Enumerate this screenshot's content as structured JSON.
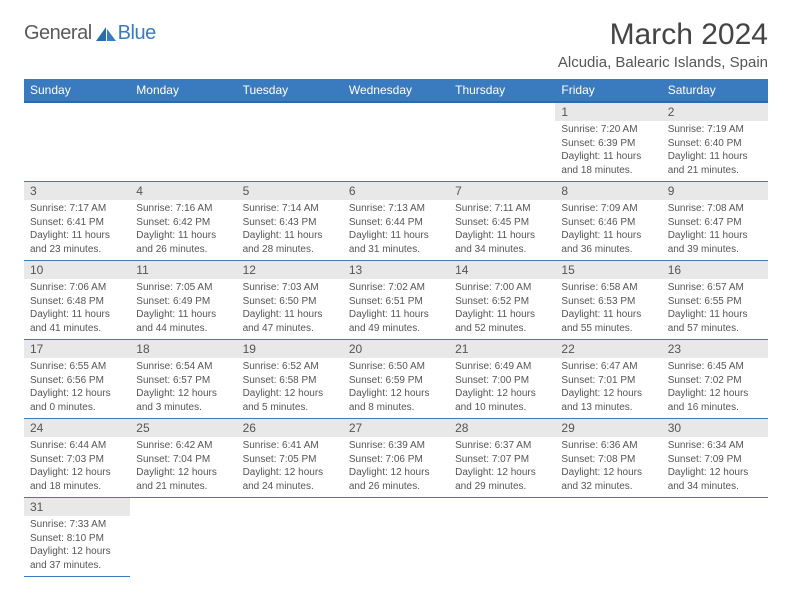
{
  "logo": {
    "text1": "General",
    "text2": "Blue"
  },
  "title": "March 2024",
  "location": "Alcudia, Balearic Islands, Spain",
  "colors": {
    "header_bg": "#3a7bbf",
    "header_border": "#2a6bad",
    "daynum_bg": "#e8e8e8",
    "cell_border": "#3a7bbf",
    "text": "#555555",
    "title_color": "#444444",
    "logo_gray": "#5a5a5a",
    "logo_blue": "#3a7bbf",
    "background": "#ffffff"
  },
  "typography": {
    "title_fontsize": 30,
    "location_fontsize": 15,
    "header_fontsize": 12,
    "daynum_fontsize": 12,
    "body_fontsize": 10,
    "logo_fontsize": 20
  },
  "columns": [
    "Sunday",
    "Monday",
    "Tuesday",
    "Wednesday",
    "Thursday",
    "Friday",
    "Saturday"
  ],
  "weeks": [
    [
      null,
      null,
      null,
      null,
      null,
      {
        "n": "1",
        "sunrise": "Sunrise: 7:20 AM",
        "sunset": "Sunset: 6:39 PM",
        "daylight": "Daylight: 11 hours and 18 minutes."
      },
      {
        "n": "2",
        "sunrise": "Sunrise: 7:19 AM",
        "sunset": "Sunset: 6:40 PM",
        "daylight": "Daylight: 11 hours and 21 minutes."
      }
    ],
    [
      {
        "n": "3",
        "sunrise": "Sunrise: 7:17 AM",
        "sunset": "Sunset: 6:41 PM",
        "daylight": "Daylight: 11 hours and 23 minutes."
      },
      {
        "n": "4",
        "sunrise": "Sunrise: 7:16 AM",
        "sunset": "Sunset: 6:42 PM",
        "daylight": "Daylight: 11 hours and 26 minutes."
      },
      {
        "n": "5",
        "sunrise": "Sunrise: 7:14 AM",
        "sunset": "Sunset: 6:43 PM",
        "daylight": "Daylight: 11 hours and 28 minutes."
      },
      {
        "n": "6",
        "sunrise": "Sunrise: 7:13 AM",
        "sunset": "Sunset: 6:44 PM",
        "daylight": "Daylight: 11 hours and 31 minutes."
      },
      {
        "n": "7",
        "sunrise": "Sunrise: 7:11 AM",
        "sunset": "Sunset: 6:45 PM",
        "daylight": "Daylight: 11 hours and 34 minutes."
      },
      {
        "n": "8",
        "sunrise": "Sunrise: 7:09 AM",
        "sunset": "Sunset: 6:46 PM",
        "daylight": "Daylight: 11 hours and 36 minutes."
      },
      {
        "n": "9",
        "sunrise": "Sunrise: 7:08 AM",
        "sunset": "Sunset: 6:47 PM",
        "daylight": "Daylight: 11 hours and 39 minutes."
      }
    ],
    [
      {
        "n": "10",
        "sunrise": "Sunrise: 7:06 AM",
        "sunset": "Sunset: 6:48 PM",
        "daylight": "Daylight: 11 hours and 41 minutes."
      },
      {
        "n": "11",
        "sunrise": "Sunrise: 7:05 AM",
        "sunset": "Sunset: 6:49 PM",
        "daylight": "Daylight: 11 hours and 44 minutes."
      },
      {
        "n": "12",
        "sunrise": "Sunrise: 7:03 AM",
        "sunset": "Sunset: 6:50 PM",
        "daylight": "Daylight: 11 hours and 47 minutes."
      },
      {
        "n": "13",
        "sunrise": "Sunrise: 7:02 AM",
        "sunset": "Sunset: 6:51 PM",
        "daylight": "Daylight: 11 hours and 49 minutes."
      },
      {
        "n": "14",
        "sunrise": "Sunrise: 7:00 AM",
        "sunset": "Sunset: 6:52 PM",
        "daylight": "Daylight: 11 hours and 52 minutes."
      },
      {
        "n": "15",
        "sunrise": "Sunrise: 6:58 AM",
        "sunset": "Sunset: 6:53 PM",
        "daylight": "Daylight: 11 hours and 55 minutes."
      },
      {
        "n": "16",
        "sunrise": "Sunrise: 6:57 AM",
        "sunset": "Sunset: 6:55 PM",
        "daylight": "Daylight: 11 hours and 57 minutes."
      }
    ],
    [
      {
        "n": "17",
        "sunrise": "Sunrise: 6:55 AM",
        "sunset": "Sunset: 6:56 PM",
        "daylight": "Daylight: 12 hours and 0 minutes."
      },
      {
        "n": "18",
        "sunrise": "Sunrise: 6:54 AM",
        "sunset": "Sunset: 6:57 PM",
        "daylight": "Daylight: 12 hours and 3 minutes."
      },
      {
        "n": "19",
        "sunrise": "Sunrise: 6:52 AM",
        "sunset": "Sunset: 6:58 PM",
        "daylight": "Daylight: 12 hours and 5 minutes."
      },
      {
        "n": "20",
        "sunrise": "Sunrise: 6:50 AM",
        "sunset": "Sunset: 6:59 PM",
        "daylight": "Daylight: 12 hours and 8 minutes."
      },
      {
        "n": "21",
        "sunrise": "Sunrise: 6:49 AM",
        "sunset": "Sunset: 7:00 PM",
        "daylight": "Daylight: 12 hours and 10 minutes."
      },
      {
        "n": "22",
        "sunrise": "Sunrise: 6:47 AM",
        "sunset": "Sunset: 7:01 PM",
        "daylight": "Daylight: 12 hours and 13 minutes."
      },
      {
        "n": "23",
        "sunrise": "Sunrise: 6:45 AM",
        "sunset": "Sunset: 7:02 PM",
        "daylight": "Daylight: 12 hours and 16 minutes."
      }
    ],
    [
      {
        "n": "24",
        "sunrise": "Sunrise: 6:44 AM",
        "sunset": "Sunset: 7:03 PM",
        "daylight": "Daylight: 12 hours and 18 minutes."
      },
      {
        "n": "25",
        "sunrise": "Sunrise: 6:42 AM",
        "sunset": "Sunset: 7:04 PM",
        "daylight": "Daylight: 12 hours and 21 minutes."
      },
      {
        "n": "26",
        "sunrise": "Sunrise: 6:41 AM",
        "sunset": "Sunset: 7:05 PM",
        "daylight": "Daylight: 12 hours and 24 minutes."
      },
      {
        "n": "27",
        "sunrise": "Sunrise: 6:39 AM",
        "sunset": "Sunset: 7:06 PM",
        "daylight": "Daylight: 12 hours and 26 minutes."
      },
      {
        "n": "28",
        "sunrise": "Sunrise: 6:37 AM",
        "sunset": "Sunset: 7:07 PM",
        "daylight": "Daylight: 12 hours and 29 minutes."
      },
      {
        "n": "29",
        "sunrise": "Sunrise: 6:36 AM",
        "sunset": "Sunset: 7:08 PM",
        "daylight": "Daylight: 12 hours and 32 minutes."
      },
      {
        "n": "30",
        "sunrise": "Sunrise: 6:34 AM",
        "sunset": "Sunset: 7:09 PM",
        "daylight": "Daylight: 12 hours and 34 minutes."
      }
    ],
    [
      {
        "n": "31",
        "sunrise": "Sunrise: 7:33 AM",
        "sunset": "Sunset: 8:10 PM",
        "daylight": "Daylight: 12 hours and 37 minutes."
      },
      null,
      null,
      null,
      null,
      null,
      null
    ]
  ]
}
